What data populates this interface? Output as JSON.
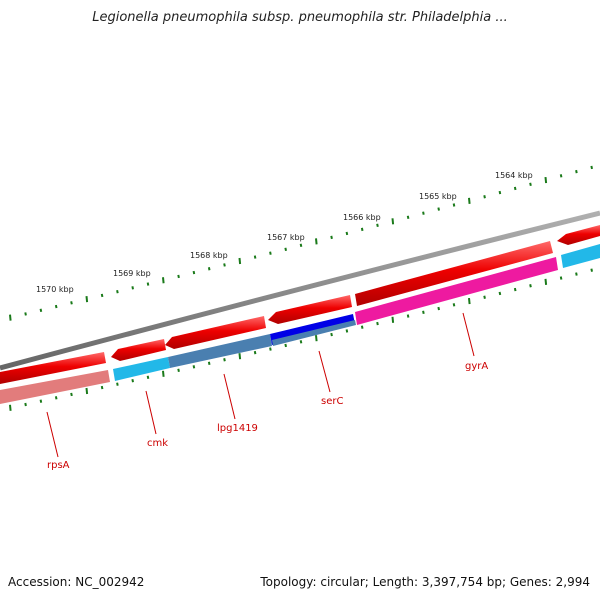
{
  "title": "Legionella pneumophila subsp. pneumophila str. Philadelphia ...",
  "footer": {
    "accession": "Accession: NC_002942",
    "topology": "Topology: circular; Length: 3,397,754 bp; Genes: 2,994"
  },
  "kbp_labels": [
    {
      "label": "1570 kbp"
    },
    {
      "label": "1569 kbp"
    },
    {
      "label": "1568 kbp"
    },
    {
      "label": "1567 kbp"
    },
    {
      "label": "1566 kbp"
    },
    {
      "label": "1565 kbp"
    },
    {
      "label": "1564 kbp"
    }
  ],
  "gene_labels": [
    {
      "label": "rpsA"
    },
    {
      "label": "cmk"
    },
    {
      "label": "lpg1419"
    },
    {
      "label": "serC"
    },
    {
      "label": "gyrA"
    }
  ],
  "colors": {
    "backbone": "#7a7a7a",
    "forward_gene": "#ee0000",
    "tick": "#1a7a1a",
    "label": "#cc0000",
    "rpsA": "#e27c7c",
    "cmk": "#22b8e8",
    "lpg1419": "#4a7fb0",
    "serC": "#0000e6",
    "gyrA": "#ee1aa0"
  }
}
